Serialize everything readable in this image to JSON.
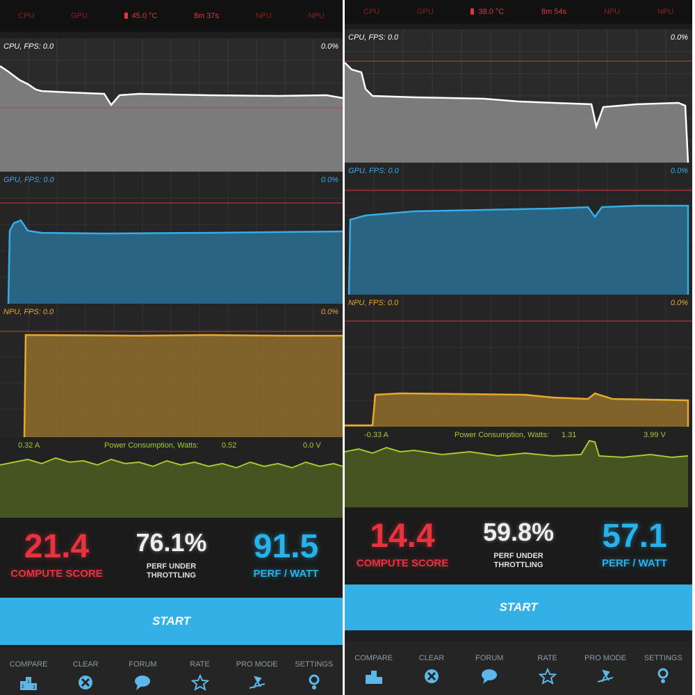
{
  "screens": [
    {
      "status": {
        "cpu": "CPU",
        "gpu": "GPU",
        "temp": "45.0 °C",
        "time": "8m 37s",
        "npu1": "NPU",
        "npu2": "NPU"
      },
      "cpu": {
        "label": "CPU, FPS:  0.0",
        "pct": "0.0%"
      },
      "gpu": {
        "label": "GPU, FPS:  0.0",
        "pct": "0.0%"
      },
      "npu": {
        "label": "NPU, FPS:  0.0",
        "pct": "0.0%"
      },
      "power": {
        "amps": "0.32 A",
        "title": "Power Consumption, Watts:",
        "watts": "0.52",
        "volts": "0.0 V"
      },
      "scores": {
        "compute": {
          "value": "21.4",
          "label": "COMPUTE SCORE"
        },
        "throttle": {
          "value": "76.1%",
          "label_line1": "PERF UNDER",
          "label_line2": "THROTTLING"
        },
        "perfwatt": {
          "value": "91.5",
          "label": "PERF / WATT"
        }
      },
      "start_label": "START",
      "nav": {
        "compare": "COMPARE",
        "clear": "CLEAR",
        "forum": "FORUM",
        "rate": "RATE",
        "pro_mode": "PRO MODE",
        "settings": "SETTINGS"
      }
    },
    {
      "status": {
        "cpu": "CPU",
        "gpu": "GPU",
        "temp": "38.0 °C",
        "time": "8m 54s",
        "npu1": "NPU",
        "npu2": "NPU"
      },
      "cpu": {
        "label": "CPU, FPS:  0.0",
        "pct": "0.0%"
      },
      "gpu": {
        "label": "GPU, FPS:  0.0",
        "pct": "0.0%"
      },
      "npu": {
        "label": "NPU, FPS:  0.0",
        "pct": "0.0%"
      },
      "power": {
        "amps": "-0.33 A",
        "title": "Power Consumption, Watts:",
        "watts": "1.31",
        "volts": "3.99 V"
      },
      "scores": {
        "compute": {
          "value": "14.4",
          "label": "COMPUTE SCORE"
        },
        "throttle": {
          "value": "59.8%",
          "label_line1": "PERF UNDER",
          "label_line2": "THROTTLING"
        },
        "perfwatt": {
          "value": "57.1",
          "label": "PERF / WATT"
        }
      },
      "start_label": "START",
      "nav": {
        "compare": "COMPARE",
        "clear": "CLEAR",
        "forum": "FORUM",
        "rate": "RATE",
        "pro_mode": "PRO MODE",
        "settings": "SETTINGS"
      }
    }
  ],
  "colors": {
    "cpu": "#ffffff",
    "gpu": "#35aee8",
    "npu": "#e8aa2c",
    "power": "#a8c832",
    "limit": "#d8343c",
    "score_red": "#e8333f",
    "score_blue": "#27b3ea",
    "start": "#33b0e6"
  },
  "icons": [
    "podium-icon",
    "clear-x-icon",
    "speech-bubble-icon",
    "star-icon",
    "witch-icon",
    "settings-gear-icon"
  ]
}
